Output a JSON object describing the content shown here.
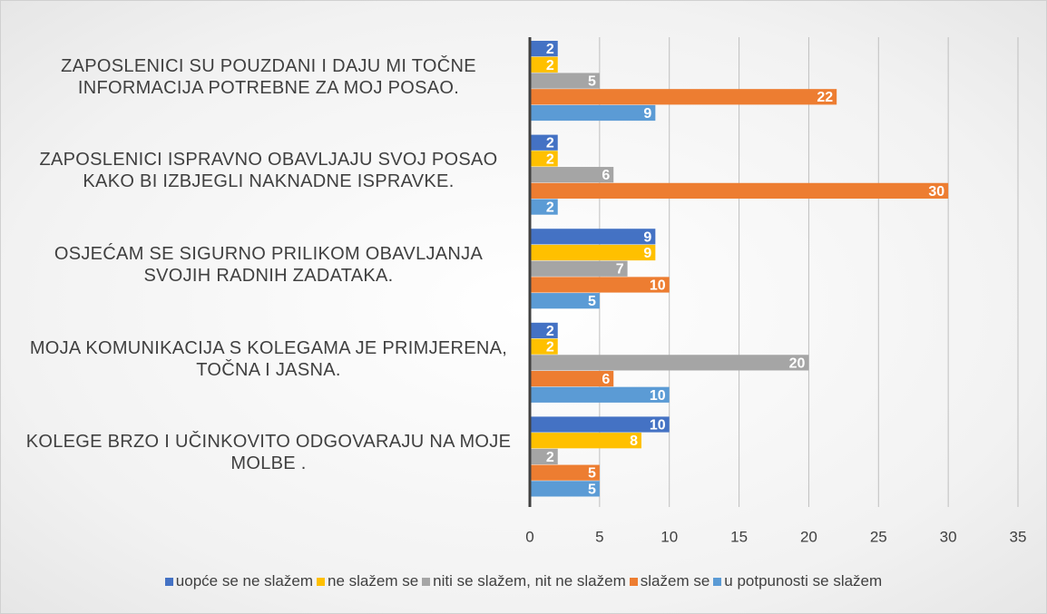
{
  "chart_data": {
    "type": "barh",
    "categories": [
      "ZAPOSLENICI SU POUZDANI I DAJU MI TOČNE INFORMACIJA POTREBNE ZA MOJ POSAO.",
      "ZAPOSLENICI ISPRAVNO OBAVLJAJU SVOJ POSAO KAKO BI IZBJEGLI NAKNADNE ISPRAVKE.",
      "OSJEĆAM SE SIGURNO PRILIKOM OBAVLJANJA SVOJIH RADNIH ZADATAKA.",
      "MOJA KOMUNIKACIJA S KOLEGAMA JE PRIMJERENA, TOČNA I JASNA.",
      "KOLEGE BRZO I UČINKOVITO ODGOVARAJU NA MOJE MOLBE ."
    ],
    "series": [
      {
        "name": "uopće se ne slažem",
        "color": "#4472c4",
        "values": [
          2,
          2,
          9,
          2,
          10
        ]
      },
      {
        "name": "ne slažem se",
        "color": "#ffc000",
        "values": [
          2,
          2,
          9,
          2,
          8
        ]
      },
      {
        "name": "niti se slažem, nit ne slažem",
        "color": "#a5a5a5",
        "values": [
          5,
          6,
          7,
          20,
          2
        ]
      },
      {
        "name": "slažem se",
        "color": "#ed7d31",
        "values": [
          22,
          30,
          10,
          6,
          5
        ]
      },
      {
        "name": "u potpunosti se slažem",
        "color": "#5b9bd5",
        "values": [
          9,
          2,
          5,
          10,
          5
        ]
      }
    ],
    "xlim": [
      0,
      35
    ],
    "xticks": [
      0,
      5,
      10,
      15,
      20,
      25,
      30,
      35
    ],
    "grid": true,
    "legend": "bottom"
  }
}
